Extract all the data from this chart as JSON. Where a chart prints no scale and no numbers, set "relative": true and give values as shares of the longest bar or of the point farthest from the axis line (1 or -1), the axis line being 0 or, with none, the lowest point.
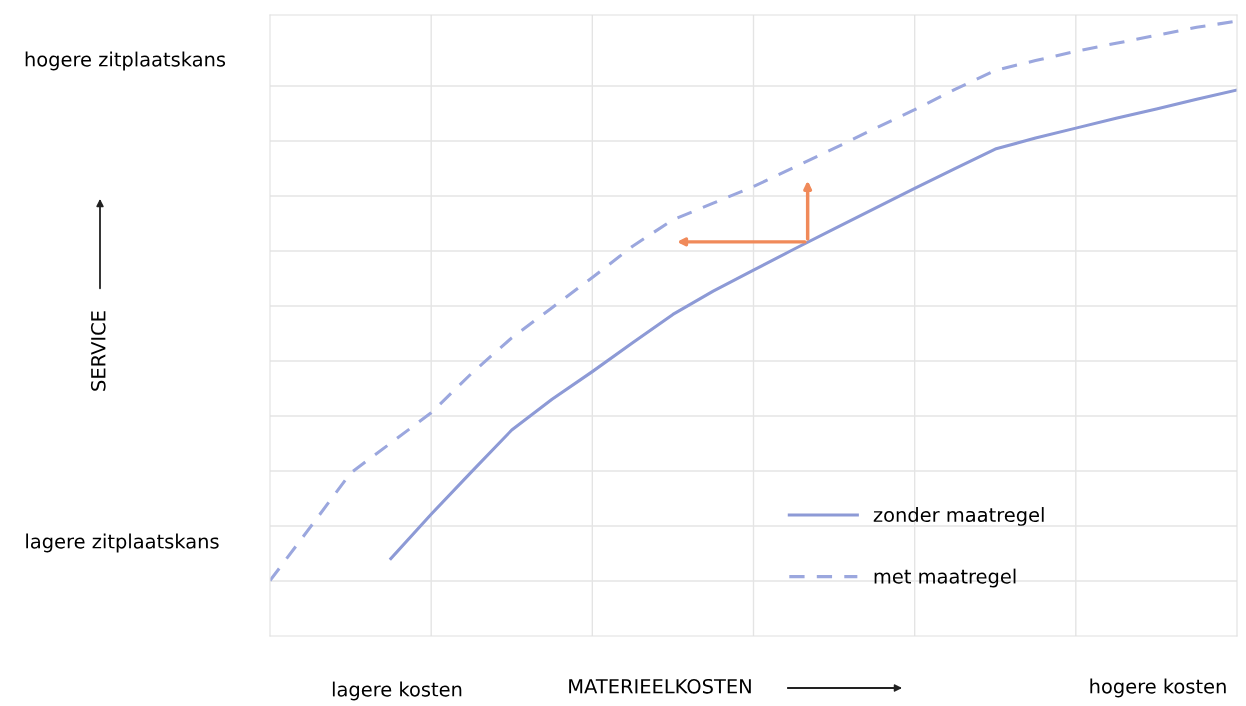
{
  "chart_data": {
    "type": "line",
    "relative": true,
    "xlabel": "MATERIEELKOSTEN",
    "annotations": [
      "hogere zitplaatskans",
      "lagere zitplaatskans",
      "lagere kosten",
      "hogere kosten",
      "SERVICE"
    ],
    "categories": [
      null,
      null,
      null,
      null,
      null,
      null,
      null,
      null,
      null,
      null,
      null,
      null,
      null,
      null,
      null,
      null,
      null,
      null,
      null,
      null,
      null,
      null,
      null,
      null,
      null
    ],
    "series": [
      {
        "name": "zonder maatregel",
        "color": "#8d9ad6",
        "line_style": "solid",
        "values": [
          null,
          null,
          null,
          0.126,
          0.198,
          0.267,
          0.335,
          0.385,
          0.43,
          0.477,
          0.523,
          0.561,
          0.595,
          0.629,
          0.662,
          0.695,
          0.728,
          0.76,
          0.792,
          0.81,
          0.826,
          0.842,
          0.857,
          0.873,
          0.888
        ]
      },
      {
        "name": "met maatregel",
        "color": "#9ba7de",
        "line_style": "dashed",
        "values": [
          0.09,
          0.177,
          0.265,
          0.314,
          0.363,
          0.427,
          0.485,
          0.534,
          0.583,
          0.634,
          0.677,
          0.704,
          0.731,
          0.762,
          0.793,
          0.825,
          0.856,
          0.889,
          0.92,
          0.936,
          0.951,
          0.964,
          0.977,
          0.99,
          1.0
        ]
      }
    ],
    "grid": true,
    "legend": "bottom right"
  }
}
